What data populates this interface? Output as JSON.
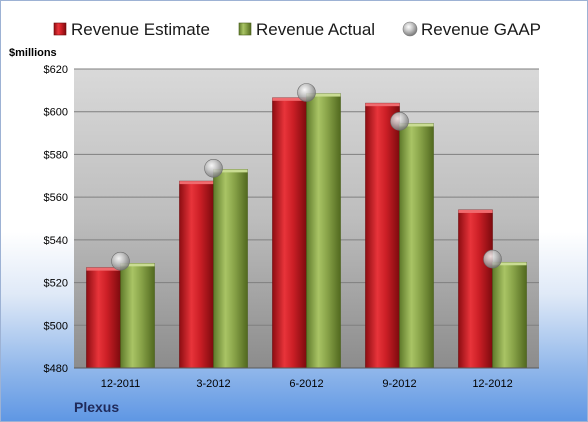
{
  "chart_data": {
    "type": "bar",
    "title": "",
    "ylabel": "$millions",
    "xlabel": "",
    "ylim": [
      480,
      620
    ],
    "yticks": [
      480,
      500,
      520,
      540,
      560,
      580,
      600,
      620
    ],
    "ytick_labels": [
      "$480",
      "$500",
      "$520",
      "$540",
      "$560",
      "$580",
      "$600",
      "$620"
    ],
    "categories": [
      "12-2011",
      "3-2012",
      "6-2012",
      "9-2012",
      "12-2012"
    ],
    "series": [
      {
        "name": "Revenue Estimate",
        "kind": "bar",
        "color": "#cc1f26",
        "values": [
          527,
          567.5,
          606.5,
          604,
          554
        ]
      },
      {
        "name": "Revenue Actual",
        "kind": "bar",
        "color": "#8aa54a",
        "values": [
          529,
          573,
          608.5,
          594.5,
          529.5
        ]
      },
      {
        "name": "Revenue GAAP",
        "kind": "marker",
        "color": "#b3b3b3",
        "values": [
          530,
          573.5,
          609,
          595.5,
          531
        ]
      }
    ],
    "legend_position": "top",
    "grid": true
  },
  "footer": {
    "company": "Plexus"
  }
}
